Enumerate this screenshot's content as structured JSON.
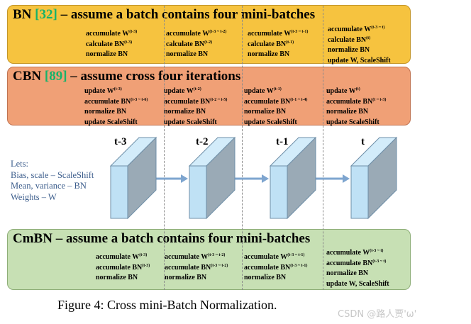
{
  "bn": {
    "title_prefix": "BN ",
    "ref": "[32]",
    "title_rest": " – assume a batch contains four mini-batches",
    "columns": [
      [
        [
          "accumulate W",
          "(t-3)"
        ],
        [
          "calculate BN",
          "(t-3)"
        ],
        [
          "normalize BN",
          ""
        ]
      ],
      [
        [
          "accumulate W",
          "(t-3 ~ t-2)"
        ],
        [
          "calculate BN",
          "(t-2)"
        ],
        [
          "normalize BN",
          ""
        ]
      ],
      [
        [
          "accumulate W",
          "(t-3 ~ t-1)"
        ],
        [
          "calculate BN",
          "(t-1)"
        ],
        [
          "normalize BN",
          ""
        ]
      ],
      [
        [
          "accumulate W",
          "(t-3 ~ t)"
        ],
        [
          "calculate BN",
          "(t)"
        ],
        [
          "normalize BN",
          ""
        ],
        [
          "update W, ScaleShift",
          ""
        ]
      ]
    ]
  },
  "cbn": {
    "title_prefix": "CBN ",
    "ref": "[89]",
    "title_rest": " – assume cross four iterations",
    "columns": [
      [
        [
          "update W",
          "(t-3)"
        ],
        [
          "accumulate BN",
          "(t-3 ~ t-6)"
        ],
        [
          "normalize BN",
          ""
        ],
        [
          "update ScaleShift",
          ""
        ]
      ],
      [
        [
          "update W",
          "(t-2)"
        ],
        [
          "accumulate BN",
          "(t-2 ~ t-5)"
        ],
        [
          "normalize BN",
          ""
        ],
        [
          "update ScaleShift",
          ""
        ]
      ],
      [
        [
          "update W",
          "(t-1)"
        ],
        [
          "accumulate BN",
          "(t-1 ~ t-4)"
        ],
        [
          "normalize BN",
          ""
        ],
        [
          "update ScaleShift",
          ""
        ]
      ],
      [
        [
          "update W",
          "(t)"
        ],
        [
          "accumulate BN",
          "(t ~ t-3)"
        ],
        [
          "normalize BN",
          ""
        ],
        [
          "update ScaleShift",
          ""
        ]
      ]
    ]
  },
  "cmbn": {
    "title": "CmBN – assume a batch contains four mini-batches",
    "columns": [
      [
        [
          "accumulate W",
          "(t-3)"
        ],
        [
          "accumulate BN",
          "(t-3)"
        ],
        [
          "normalize BN",
          ""
        ]
      ],
      [
        [
          "accumulate W",
          "(t-3 ~ t-2)"
        ],
        [
          "accumulate BN",
          "(t-3 ~ t-2)"
        ],
        [
          "normalize BN",
          ""
        ]
      ],
      [
        [
          "accumulate W",
          "(t-3 ~ t-1)"
        ],
        [
          "accumulate BN",
          "(t-3 ~ t-1)"
        ],
        [
          "normalize BN",
          ""
        ]
      ],
      [
        [
          "accumulate W",
          "(t-3 ~ t)"
        ],
        [
          "accumulate BN",
          "(t-3 ~ t)"
        ],
        [
          "normalize BN",
          ""
        ],
        [
          "update W, ScaleShift",
          ""
        ]
      ]
    ]
  },
  "legend": {
    "title": "Lets:",
    "lines": [
      "Bias, scale – ScaleShift",
      "Mean, variance – BN",
      "Weights – W"
    ]
  },
  "timesteps": [
    "t-3",
    "t-2",
    "t-1",
    "t"
  ],
  "caption": "Figure 4: Cross mini-Batch Normalization.",
  "watermark": "CSDN @路人贾'ω'",
  "colors": {
    "bn_panel": "#f6c33f",
    "cbn_panel": "#f0a076",
    "cmbn_panel": "#c7e0b4",
    "reference": "#17b26a",
    "block_front": "#bfe1f5",
    "block_side": "#9aaab6",
    "arrow": "#7ea5cf",
    "legend_text": "#3c5d8c"
  }
}
